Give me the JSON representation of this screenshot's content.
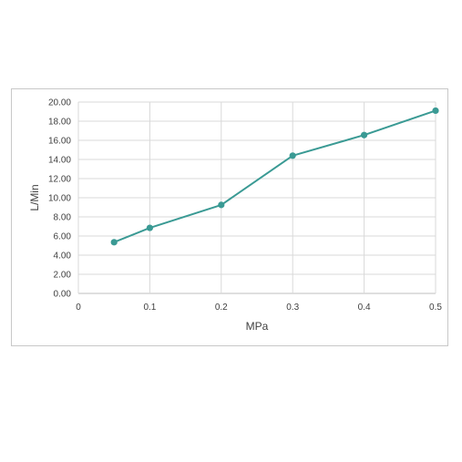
{
  "chart_data": {
    "type": "line",
    "title": "",
    "xlabel": "MPa",
    "ylabel": "L/Min",
    "xlim": [
      0,
      0.5
    ],
    "ylim": [
      0,
      20
    ],
    "x_ticks": [
      0,
      0.1,
      0.2,
      0.3,
      0.4,
      0.5
    ],
    "x_tick_labels": [
      "0",
      "0.1",
      "0.2",
      "0.3",
      "0.4",
      "0.5"
    ],
    "y_ticks": [
      0,
      2,
      4,
      6,
      8,
      10,
      12,
      14,
      16,
      18,
      20
    ],
    "y_tick_labels": [
      "0.00",
      "2.00",
      "4.00",
      "6.00",
      "8.00",
      "10.00",
      "12.00",
      "14.00",
      "16.00",
      "18.00",
      "20.00"
    ],
    "grid": true,
    "legend": "none",
    "series": [
      {
        "color": "#3a9a94",
        "x": [
          0.05,
          0.1,
          0.2,
          0.3,
          0.4,
          0.5
        ],
        "y": [
          5.35,
          6.85,
          9.25,
          14.4,
          16.55,
          19.1
        ]
      }
    ]
  }
}
